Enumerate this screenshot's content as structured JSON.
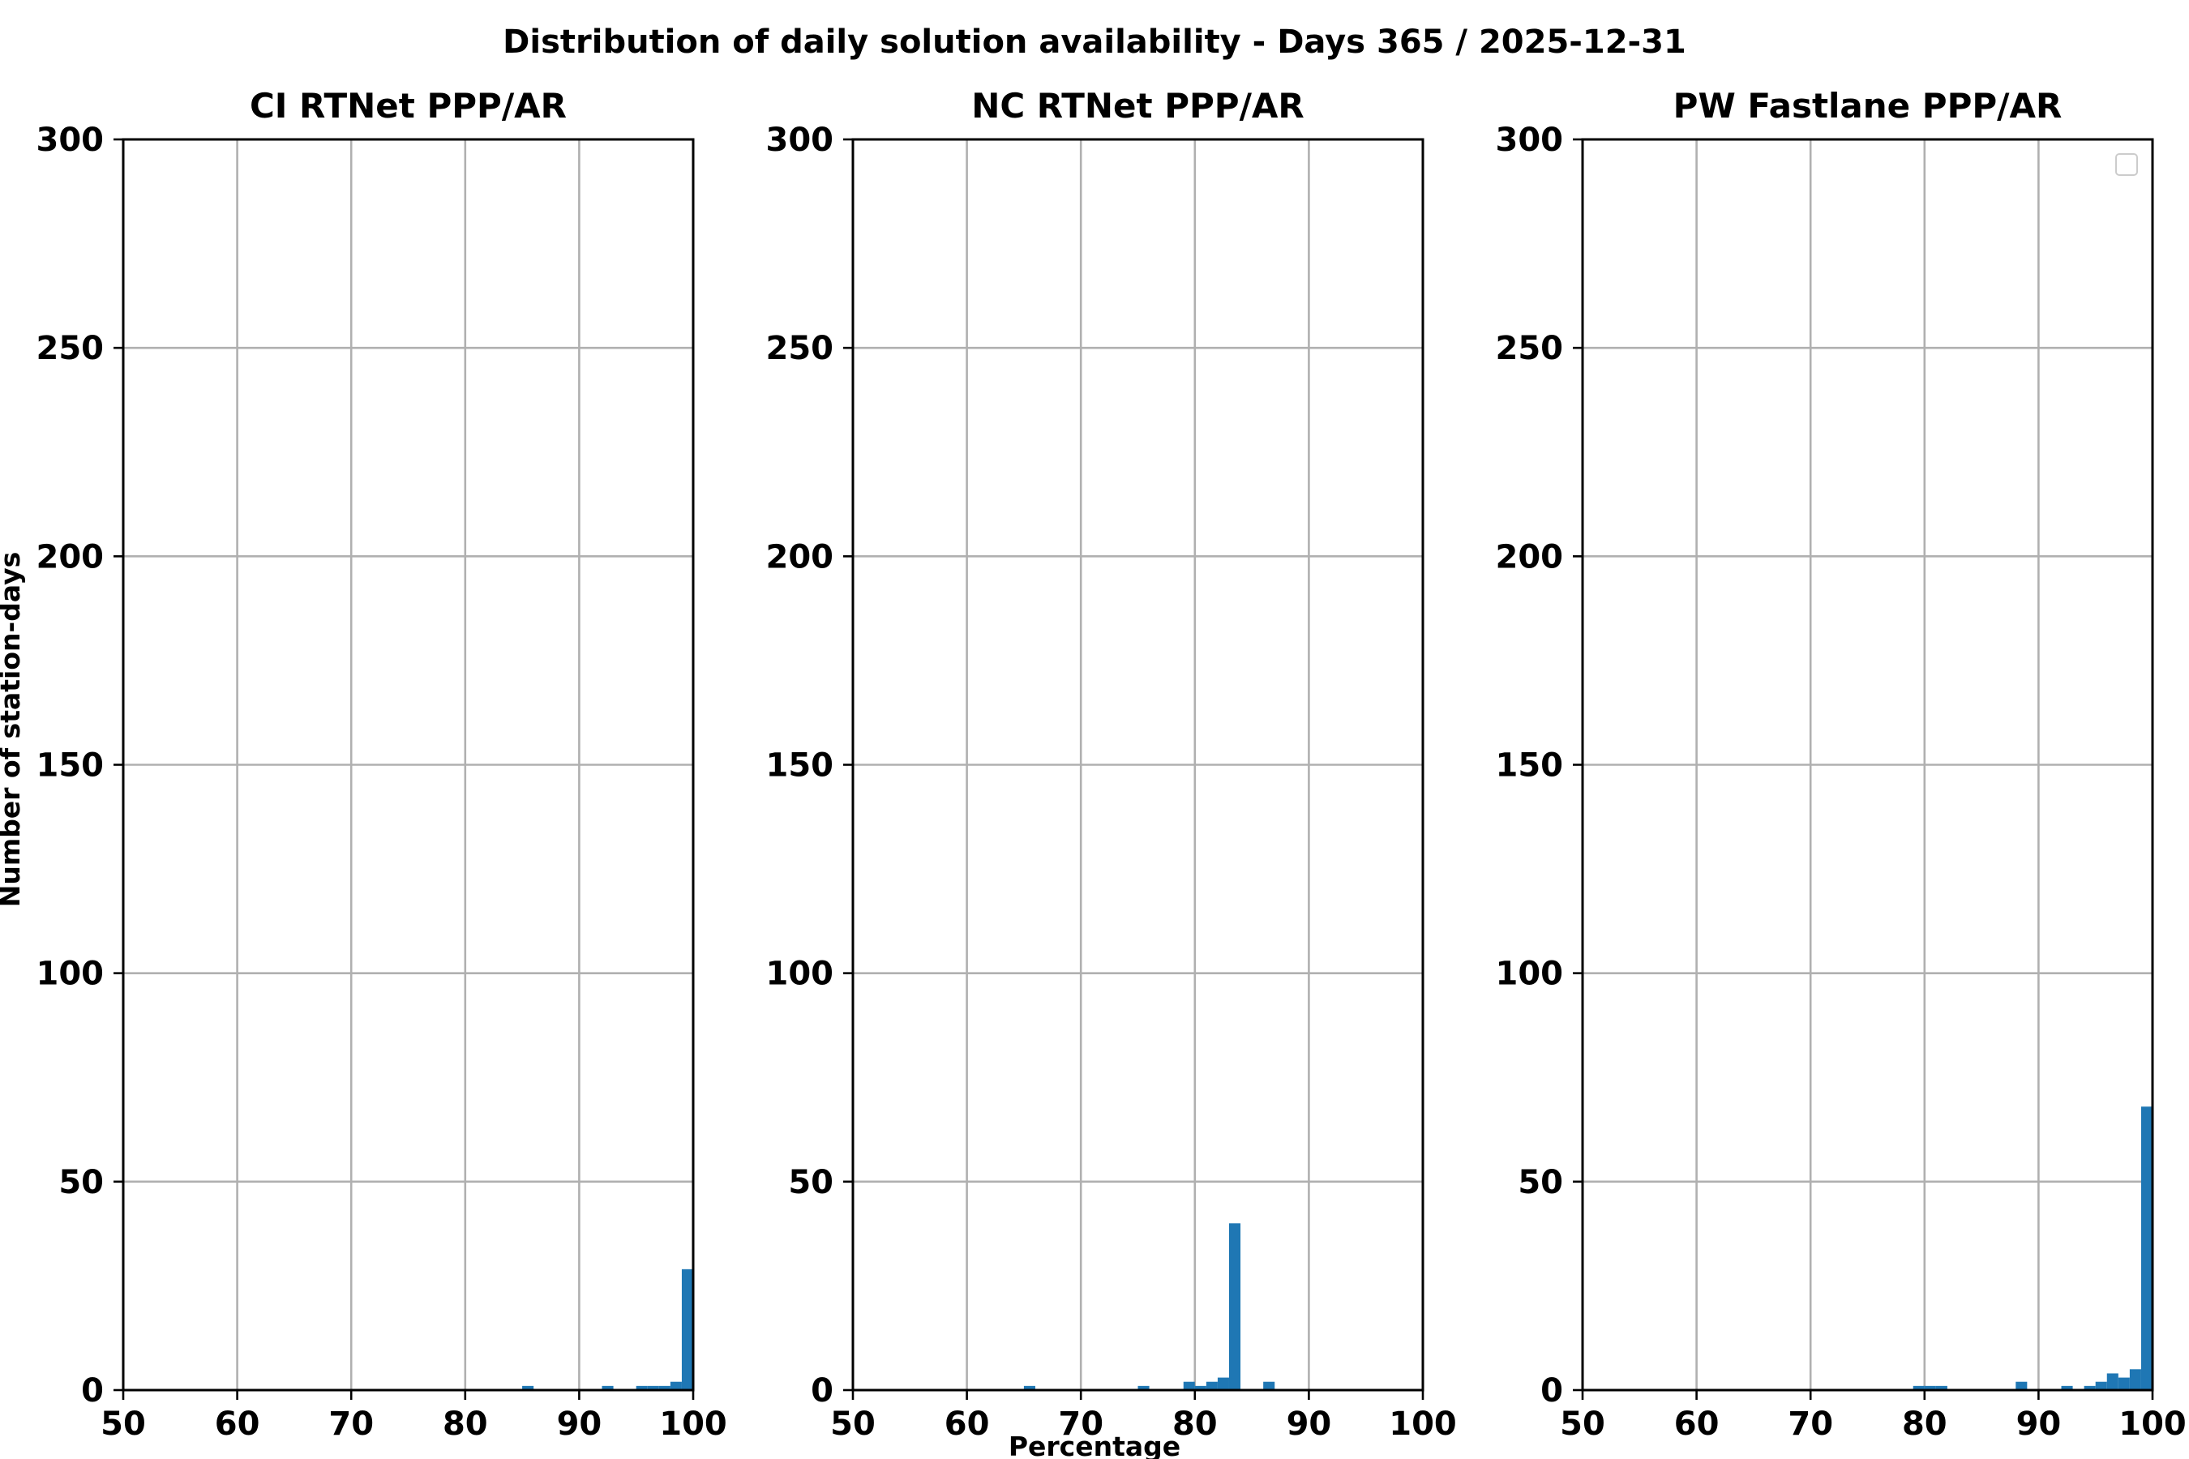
{
  "title": "Distribution of daily solution availability - Days 365  / 2025-12-31",
  "xlabel": "Percentage",
  "ylabel": "Number of station-days",
  "chart_data": [
    {
      "type": "bar",
      "title": "CI RTNet PPP/AR",
      "xlim": [
        50,
        100
      ],
      "ylim": [
        0,
        300
      ],
      "xticks": [
        50,
        60,
        70,
        80,
        90,
        100
      ],
      "yticks": [
        0,
        50,
        100,
        150,
        200,
        250,
        300
      ],
      "grid": true,
      "bin_width": 1,
      "bins": [
        {
          "x": 85,
          "count": 1
        },
        {
          "x": 92,
          "count": 1
        },
        {
          "x": 95,
          "count": 1
        },
        {
          "x": 96,
          "count": 1
        },
        {
          "x": 97,
          "count": 1
        },
        {
          "x": 98,
          "count": 2
        },
        {
          "x": 99,
          "count": 29
        }
      ]
    },
    {
      "type": "bar",
      "title": "NC RTNet PPP/AR",
      "xlim": [
        50,
        100
      ],
      "ylim": [
        0,
        300
      ],
      "xticks": [
        50,
        60,
        70,
        80,
        90,
        100
      ],
      "yticks": [
        0,
        50,
        100,
        150,
        200,
        250,
        300
      ],
      "grid": true,
      "bin_width": 1,
      "bins": [
        {
          "x": 65,
          "count": 1
        },
        {
          "x": 75,
          "count": 1
        },
        {
          "x": 79,
          "count": 2
        },
        {
          "x": 80,
          "count": 1
        },
        {
          "x": 81,
          "count": 2
        },
        {
          "x": 82,
          "count": 3
        },
        {
          "x": 83,
          "count": 40
        },
        {
          "x": 86,
          "count": 2
        }
      ]
    },
    {
      "type": "bar",
      "title": "PW Fastlane PPP/AR",
      "xlim": [
        50,
        100
      ],
      "ylim": [
        0,
        300
      ],
      "xticks": [
        50,
        60,
        70,
        80,
        90,
        100
      ],
      "yticks": [
        0,
        50,
        100,
        150,
        200,
        250,
        300
      ],
      "grid": true,
      "legend": "top-right",
      "bin_width": 1,
      "bins": [
        {
          "x": 79,
          "count": 1
        },
        {
          "x": 80,
          "count": 1
        },
        {
          "x": 81,
          "count": 1
        },
        {
          "x": 88,
          "count": 2
        },
        {
          "x": 92,
          "count": 1
        },
        {
          "x": 94,
          "count": 1
        },
        {
          "x": 95,
          "count": 2
        },
        {
          "x": 96,
          "count": 4
        },
        {
          "x": 97,
          "count": 3
        },
        {
          "x": 98,
          "count": 5
        },
        {
          "x": 99,
          "count": 68
        }
      ]
    }
  ],
  "colors": {
    "bar": "#1f77b4"
  }
}
